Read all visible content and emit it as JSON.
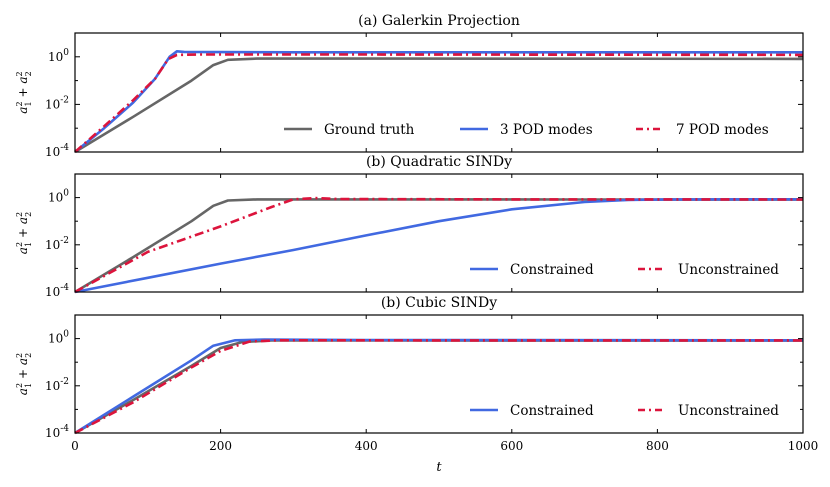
{
  "chart_data": [
    {
      "type": "line",
      "title": "(a) Galerkin Projection",
      "ylabel": "a_1^2 + a_2^2",
      "xlabel": "",
      "yscale": "log",
      "ylim": [
        0.0001,
        10
      ],
      "xlim": [
        0,
        1000
      ],
      "yticks": [
        {
          "exp": "-4"
        },
        {
          "exp": "-2"
        },
        {
          "exp": "0"
        }
      ],
      "legend_position": "lower-right",
      "series": [
        {
          "name": "Ground truth",
          "color": "#666666",
          "style": "solid",
          "points": [
            [
              0,
              0.0001
            ],
            [
              80,
              0.003
            ],
            [
              160,
              0.1
            ],
            [
              190,
              0.45
            ],
            [
              210,
              0.75
            ],
            [
              250,
              0.84
            ],
            [
              400,
              0.84
            ],
            [
              700,
              0.83
            ],
            [
              1000,
              0.82
            ]
          ]
        },
        {
          "name": "3 POD modes",
          "color": "#4169e1",
          "style": "solid",
          "points": [
            [
              0,
              0.0001
            ],
            [
              40,
              0.001
            ],
            [
              80,
              0.012
            ],
            [
              110,
              0.12
            ],
            [
              130,
              1.0
            ],
            [
              140,
              1.7
            ],
            [
              150,
              1.6
            ],
            [
              300,
              1.55
            ],
            [
              700,
              1.55
            ],
            [
              1000,
              1.55
            ]
          ]
        },
        {
          "name": "7 POD modes",
          "color": "#dc143c",
          "style": "dashdot",
          "points": [
            [
              0,
              0.0001
            ],
            [
              40,
              0.0012
            ],
            [
              80,
              0.015
            ],
            [
              110,
              0.12
            ],
            [
              128,
              0.8
            ],
            [
              140,
              1.2
            ],
            [
              170,
              1.25
            ],
            [
              400,
              1.25
            ],
            [
              1000,
              1.2
            ]
          ]
        }
      ]
    },
    {
      "type": "line",
      "title": "(b) Quadratic SINDy",
      "ylabel": "a_1^2 + a_2^2",
      "xlabel": "",
      "yscale": "log",
      "ylim": [
        0.0001,
        10
      ],
      "xlim": [
        0,
        1000
      ],
      "yticks": [
        {
          "exp": "-4"
        },
        {
          "exp": "-2"
        },
        {
          "exp": "0"
        }
      ],
      "legend_position": "lower-right",
      "series": [
        {
          "name": "Ground truth",
          "color": "#666666",
          "style": "solid",
          "in_legend": false,
          "points": [
            [
              0,
              0.0001
            ],
            [
              80,
              0.003
            ],
            [
              160,
              0.1
            ],
            [
              190,
              0.45
            ],
            [
              210,
              0.75
            ],
            [
              250,
              0.84
            ],
            [
              400,
              0.84
            ],
            [
              700,
              0.83
            ],
            [
              1000,
              0.82
            ]
          ]
        },
        {
          "name": "Constrained",
          "color": "#4169e1",
          "style": "solid",
          "points": [
            [
              0,
              0.0001
            ],
            [
              100,
              0.0004
            ],
            [
              200,
              0.0016
            ],
            [
              300,
              0.006
            ],
            [
              400,
              0.025
            ],
            [
              500,
              0.1
            ],
            [
              600,
              0.32
            ],
            [
              700,
              0.65
            ],
            [
              760,
              0.8
            ],
            [
              820,
              0.84
            ],
            [
              1000,
              0.85
            ]
          ]
        },
        {
          "name": "Unconstrained",
          "color": "#dc143c",
          "style": "dashdot",
          "points": [
            [
              0,
              0.0001
            ],
            [
              100,
              0.005
            ],
            [
              200,
              0.06
            ],
            [
              270,
              0.4
            ],
            [
              300,
              0.85
            ],
            [
              330,
              0.95
            ],
            [
              360,
              0.87
            ],
            [
              600,
              0.84
            ],
            [
              1000,
              0.83
            ]
          ]
        }
      ]
    },
    {
      "type": "line",
      "title": "(b) Cubic SINDy",
      "ylabel": "a_1^2 + a_2^2",
      "xlabel": "t",
      "yscale": "log",
      "ylim": [
        0.0001,
        10
      ],
      "xlim": [
        0,
        1000
      ],
      "yticks": [
        {
          "exp": "-4"
        },
        {
          "exp": "-2"
        },
        {
          "exp": "0"
        }
      ],
      "xticks": [
        "0",
        "200",
        "400",
        "600",
        "800",
        "1000"
      ],
      "legend_position": "lower-right",
      "series": [
        {
          "name": "Ground truth",
          "color": "#666666",
          "style": "solid",
          "in_legend": false,
          "points": [
            [
              0,
              0.0001
            ],
            [
              80,
              0.0025
            ],
            [
              160,
              0.07
            ],
            [
              200,
              0.4
            ],
            [
              230,
              0.72
            ],
            [
              270,
              0.83
            ],
            [
              400,
              0.83
            ],
            [
              1000,
              0.82
            ]
          ]
        },
        {
          "name": "Constrained",
          "color": "#4169e1",
          "style": "solid",
          "points": [
            [
              0,
              0.0001
            ],
            [
              80,
              0.0035
            ],
            [
              160,
              0.12
            ],
            [
              190,
              0.5
            ],
            [
              220,
              0.85
            ],
            [
              260,
              0.92
            ],
            [
              400,
              0.87
            ],
            [
              1000,
              0.85
            ]
          ]
        },
        {
          "name": "Unconstrained",
          "color": "#dc143c",
          "style": "dashdot",
          "points": [
            [
              0,
              0.0001
            ],
            [
              80,
              0.002
            ],
            [
              160,
              0.06
            ],
            [
              200,
              0.3
            ],
            [
              240,
              0.75
            ],
            [
              280,
              0.85
            ],
            [
              500,
              0.84
            ],
            [
              1000,
              0.84
            ]
          ]
        }
      ]
    }
  ]
}
